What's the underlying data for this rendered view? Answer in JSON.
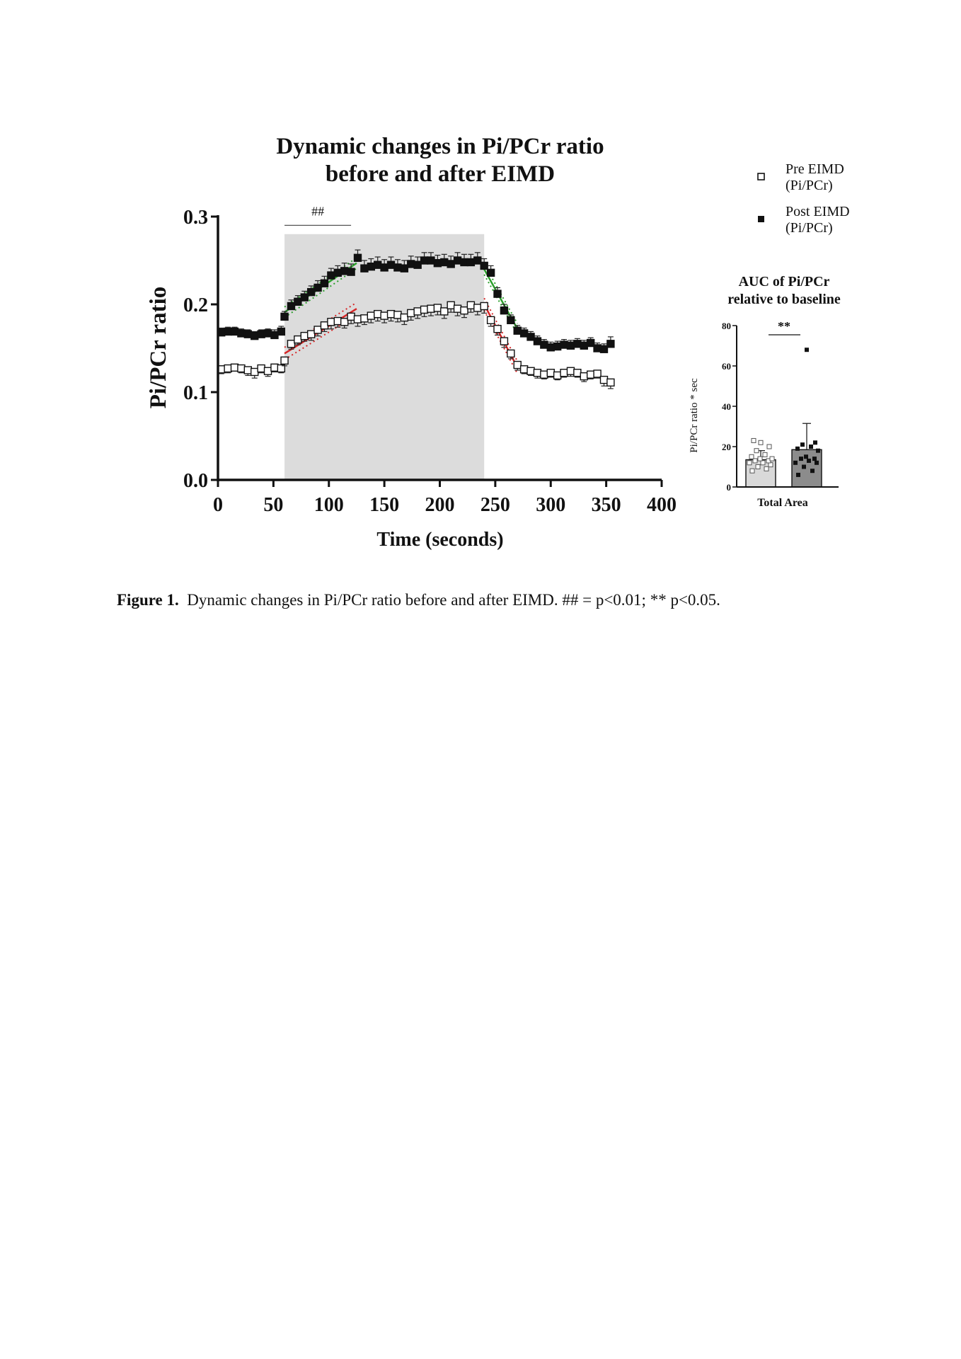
{
  "chart_data": [
    {
      "type": "scatter",
      "title": "Dynamic changes in Pi/PCr ratio",
      "subtitle": "before and after EIMD",
      "xlabel": "Time (seconds)",
      "ylabel": "Pi/PCr ratio",
      "xlim": [
        0,
        400
      ],
      "ylim": [
        0,
        0.3
      ],
      "xticks": [
        "0",
        "50",
        "100",
        "150",
        "200",
        "250",
        "300",
        "350",
        "400"
      ],
      "yticks": [
        "0.0",
        "0.1",
        "0.2",
        "0.3"
      ],
      "grid": false,
      "legend_position": "top-right",
      "shaded_region": [
        60,
        240
      ],
      "shade_color": "#dcdcdc",
      "significance": {
        "label": "##",
        "x_range": [
          60,
          120
        ],
        "y": 0.29
      },
      "series": [
        {
          "name": "Pre EIMD (Pi/PCr)",
          "marker": "open-square",
          "x": [
            3,
            9,
            15,
            21,
            27,
            33,
            39,
            45,
            51,
            57,
            60,
            66,
            72,
            78,
            84,
            90,
            96,
            102,
            108,
            114,
            120,
            126,
            132,
            138,
            144,
            150,
            156,
            162,
            168,
            174,
            180,
            186,
            192,
            198,
            204,
            210,
            216,
            222,
            228,
            234,
            240,
            246,
            252,
            258,
            264,
            270,
            276,
            282,
            288,
            294,
            300,
            306,
            312,
            318,
            324,
            330,
            336,
            342,
            348,
            354
          ],
          "y": [
            0.126,
            0.127,
            0.128,
            0.127,
            0.125,
            0.123,
            0.127,
            0.124,
            0.128,
            0.127,
            0.136,
            0.155,
            0.16,
            0.164,
            0.166,
            0.171,
            0.176,
            0.18,
            0.181,
            0.18,
            0.186,
            0.183,
            0.184,
            0.187,
            0.189,
            0.187,
            0.189,
            0.188,
            0.185,
            0.19,
            0.192,
            0.194,
            0.195,
            0.196,
            0.192,
            0.199,
            0.195,
            0.193,
            0.199,
            0.196,
            0.198,
            0.182,
            0.172,
            0.158,
            0.144,
            0.131,
            0.126,
            0.124,
            0.122,
            0.12,
            0.122,
            0.119,
            0.122,
            0.124,
            0.122,
            0.118,
            0.12,
            0.121,
            0.114,
            0.111
          ],
          "err": [
            0.005,
            0.005,
            0.004,
            0.005,
            0.006,
            0.007,
            0.005,
            0.006,
            0.005,
            0.005,
            0.006,
            0.006,
            0.006,
            0.006,
            0.007,
            0.007,
            0.007,
            0.008,
            0.007,
            0.007,
            0.008,
            0.008,
            0.007,
            0.008,
            0.008,
            0.008,
            0.008,
            0.008,
            0.008,
            0.008,
            0.008,
            0.008,
            0.008,
            0.008,
            0.008,
            0.008,
            0.008,
            0.008,
            0.008,
            0.008,
            0.008,
            0.007,
            0.007,
            0.007,
            0.006,
            0.006,
            0.005,
            0.005,
            0.006,
            0.005,
            0.005,
            0.005,
            0.005,
            0.006,
            0.005,
            0.006,
            0.005,
            0.005,
            0.007,
            0.007
          ]
        },
        {
          "name": "Post EIMD (Pi/PCr)",
          "marker": "filled-square",
          "x": [
            3,
            9,
            15,
            21,
            27,
            33,
            39,
            45,
            51,
            57,
            60,
            66,
            72,
            78,
            84,
            90,
            96,
            102,
            108,
            114,
            120,
            126,
            132,
            138,
            144,
            150,
            156,
            162,
            168,
            174,
            180,
            186,
            192,
            198,
            204,
            210,
            216,
            222,
            228,
            234,
            240,
            246,
            252,
            258,
            264,
            270,
            276,
            282,
            288,
            294,
            300,
            306,
            312,
            318,
            324,
            330,
            336,
            342,
            348,
            354
          ],
          "y": [
            0.168,
            0.169,
            0.169,
            0.167,
            0.166,
            0.164,
            0.166,
            0.167,
            0.165,
            0.169,
            0.186,
            0.198,
            0.203,
            0.208,
            0.214,
            0.219,
            0.224,
            0.233,
            0.236,
            0.238,
            0.237,
            0.253,
            0.241,
            0.243,
            0.245,
            0.242,
            0.245,
            0.242,
            0.241,
            0.246,
            0.245,
            0.25,
            0.25,
            0.247,
            0.248,
            0.246,
            0.25,
            0.248,
            0.248,
            0.25,
            0.244,
            0.236,
            0.212,
            0.193,
            0.182,
            0.17,
            0.167,
            0.163,
            0.158,
            0.154,
            0.151,
            0.152,
            0.154,
            0.153,
            0.155,
            0.153,
            0.156,
            0.15,
            0.149,
            0.155
          ],
          "err": [
            0.005,
            0.005,
            0.005,
            0.005,
            0.005,
            0.005,
            0.005,
            0.005,
            0.006,
            0.006,
            0.006,
            0.007,
            0.007,
            0.007,
            0.007,
            0.008,
            0.008,
            0.008,
            0.008,
            0.009,
            0.009,
            0.009,
            0.009,
            0.009,
            0.009,
            0.009,
            0.009,
            0.009,
            0.009,
            0.009,
            0.009,
            0.009,
            0.009,
            0.009,
            0.009,
            0.009,
            0.009,
            0.009,
            0.009,
            0.009,
            0.008,
            0.008,
            0.007,
            0.007,
            0.006,
            0.006,
            0.006,
            0.006,
            0.006,
            0.006,
            0.006,
            0.006,
            0.006,
            0.006,
            0.006,
            0.006,
            0.006,
            0.006,
            0.006,
            0.008
          ]
        }
      ],
      "fit_lines": [
        {
          "series": "Post EIMD (Pi/PCr)",
          "color": "#2ca02c",
          "x": [
            60,
            125
          ],
          "y": [
            0.191,
            0.247
          ],
          "ci_offset": 0.006
        },
        {
          "series": "Pre EIMD (Pi/PCr)",
          "color": "#d62728",
          "x": [
            60,
            125
          ],
          "y": [
            0.144,
            0.195
          ],
          "ci_offset": 0.007
        },
        {
          "series": "Post EIMD (Pi/PCr)",
          "color": "#2ca02c",
          "x": [
            240,
            270
          ],
          "y": [
            0.24,
            0.172
          ],
          "ci_offset": 0.006
        },
        {
          "series": "Pre EIMD (Pi/PCr)",
          "color": "#d62728",
          "x": [
            240,
            270
          ],
          "y": [
            0.2,
            0.128
          ],
          "ci_offset": 0.007
        }
      ]
    },
    {
      "type": "bar",
      "title": "AUC of Pi/PCr",
      "subtitle": "relative to baseline",
      "categories": [
        "Total Area"
      ],
      "ylabel": "Pi/PCr ratio * sec",
      "ylim": [
        0,
        80
      ],
      "yticks": [
        "0",
        "20",
        "40",
        "60",
        "80"
      ],
      "significance": "**",
      "series": [
        {
          "name": "Pre EIMD (Pi/PCr)",
          "value": 13.5,
          "err": 4.5,
          "color": "#d9d9d9",
          "points": [
            8,
            9,
            10,
            11,
            12,
            12,
            13,
            13,
            14,
            14,
            15,
            16,
            18,
            20,
            22,
            23
          ]
        },
        {
          "name": "Post EIMD (Pi/PCr)",
          "value": 18.5,
          "err": 13,
          "color": "#8c8c8c",
          "points": [
            6,
            8,
            10,
            12,
            12,
            13,
            14,
            14,
            15,
            18,
            19,
            20,
            21,
            22,
            68
          ]
        }
      ]
    }
  ],
  "caption": {
    "label": "Figure 1.",
    "text": "Dynamic changes in Pi/PCr ratio before and after EIMD. ## = p<0.01; ** p<0.05."
  }
}
